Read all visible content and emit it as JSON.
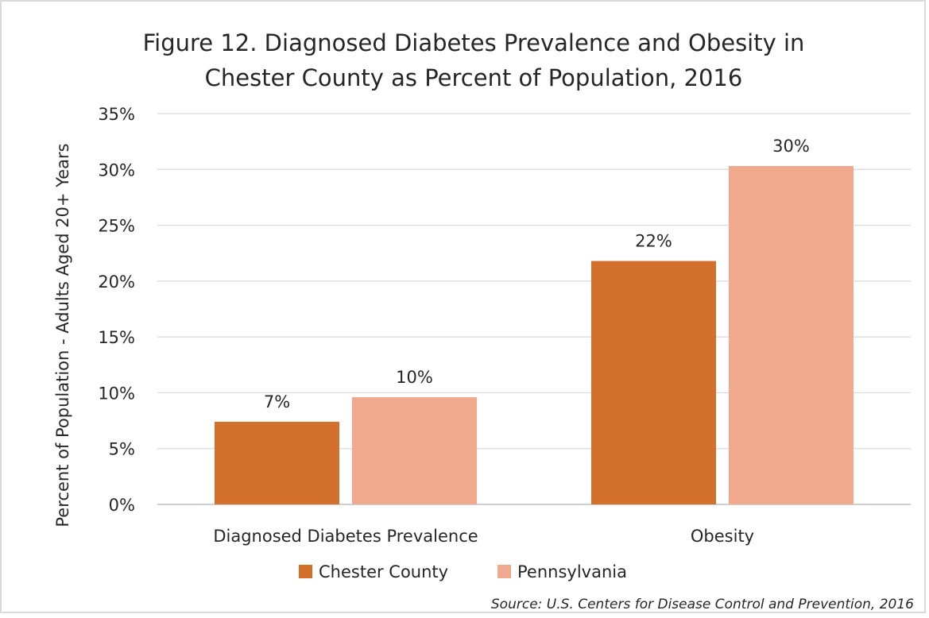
{
  "chart_data": {
    "type": "bar",
    "title_lines": [
      "Figure 12. Diagnosed Diabetes Prevalence and Obesity in",
      "Chester County as Percent of Population, 2016"
    ],
    "xlabel": "",
    "ylabel": "Percent of Population - Adults Aged 20+ Years",
    "categories": [
      "Diagnosed Diabetes Prevalence",
      "Obesity"
    ],
    "ylim": [
      0,
      35
    ],
    "yticks": [
      0,
      5,
      10,
      15,
      20,
      25,
      30,
      35
    ],
    "ytick_labels": [
      "0%",
      "5%",
      "10%",
      "15%",
      "20%",
      "25%",
      "30%",
      "35%"
    ],
    "grid": true,
    "legend_position": "bottom",
    "series": [
      {
        "name": "Chester County",
        "values": [
          7.4,
          21.8
        ],
        "labels": [
          "7%",
          "22%"
        ],
        "color": "#d2702c"
      },
      {
        "name": "Pennsylvania",
        "values": [
          9.6,
          30.3
        ],
        "labels": [
          "10%",
          "30%"
        ],
        "color": "#f0a98c"
      }
    ],
    "source": "Source: U.S. Centers for Disease Control and Prevention, 2016"
  }
}
